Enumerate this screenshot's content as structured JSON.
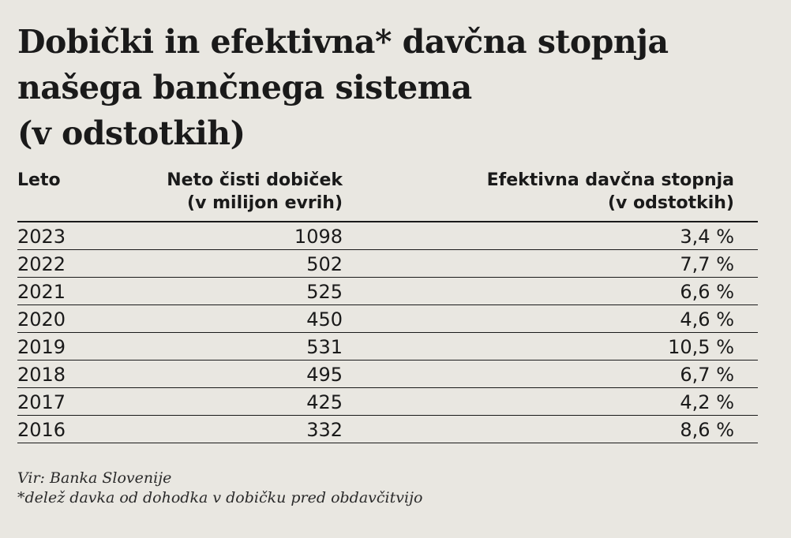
{
  "chart_data": {
    "type": "table",
    "title_lines": [
      "Dobički in efektivna* davčna stopnja",
      "našega bančnega sistema",
      "(v odstotkih)"
    ],
    "columns": [
      {
        "label": "Leto",
        "sublabel": ""
      },
      {
        "label": "Neto čisti dobiček",
        "sublabel": "(v milijon evrih)"
      },
      {
        "label": "Efektivna davčna stopnja",
        "sublabel": "(v odstotkih)"
      }
    ],
    "rows": [
      {
        "year": "2023",
        "profit": "1098",
        "tax": "3,4 %"
      },
      {
        "year": "2022",
        "profit": "502",
        "tax": "7,7 %"
      },
      {
        "year": "2021",
        "profit": "525",
        "tax": "6,6 %"
      },
      {
        "year": "2020",
        "profit": "450",
        "tax": "4,6 %"
      },
      {
        "year": "2019",
        "profit": "531",
        "tax": "10,5 %"
      },
      {
        "year": "2018",
        "profit": "495",
        "tax": "6,7 %"
      },
      {
        "year": "2017",
        "profit": "425",
        "tax": "4,2 %"
      },
      {
        "year": "2016",
        "profit": "332",
        "tax": "8,6 %"
      }
    ],
    "source": "Vir: Banka Slovenije",
    "footnote": "*delež davka od dohodka v dobičku pred obdavčitvijo"
  }
}
